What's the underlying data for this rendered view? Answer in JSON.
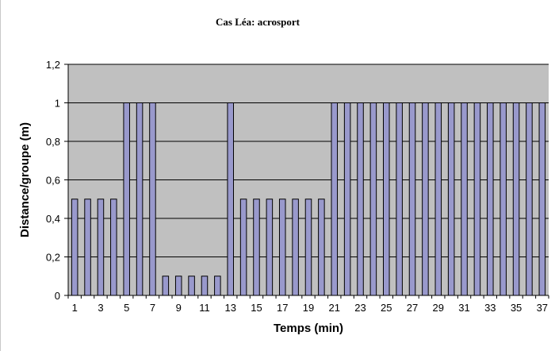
{
  "chart_data": {
    "type": "bar",
    "title": "Cas Léa: acrosport",
    "xlabel": "Temps (min)",
    "ylabel": "Distance/groupe (m)",
    "ylim": [
      0,
      1.2
    ],
    "y_ticks": [
      "0",
      "0,2",
      "0,4",
      "0,6",
      "0,8",
      "1",
      "1,2"
    ],
    "x_tick_labels": [
      "1",
      "3",
      "5",
      "7",
      "9",
      "11",
      "13",
      "15",
      "17",
      "19",
      "21",
      "23",
      "25",
      "27",
      "29",
      "31",
      "33",
      "35",
      "37"
    ],
    "categories": [
      "1",
      "2",
      "3",
      "4",
      "5",
      "6",
      "7",
      "8",
      "9",
      "10",
      "11",
      "12",
      "13",
      "14",
      "15",
      "16",
      "17",
      "18",
      "19",
      "20",
      "21",
      "22",
      "23",
      "24",
      "25",
      "26",
      "27",
      "28",
      "29",
      "30",
      "31",
      "32",
      "33",
      "34",
      "35",
      "36",
      "37"
    ],
    "values": [
      0.5,
      0.5,
      0.5,
      0.5,
      1,
      1,
      1,
      0.1,
      0.1,
      0.1,
      0.1,
      0.1,
      1,
      0.5,
      0.5,
      0.5,
      0.5,
      0.5,
      0.5,
      0.5,
      1,
      1,
      1,
      1,
      1,
      1,
      1,
      1,
      1,
      1,
      1,
      1,
      1,
      1,
      1,
      1,
      1
    ],
    "grid": true,
    "colors": {
      "bar_fill": "#9999cc",
      "bar_stroke": "#000000",
      "plot_background": "#c0c0c0",
      "gridline": "#000000"
    }
  }
}
